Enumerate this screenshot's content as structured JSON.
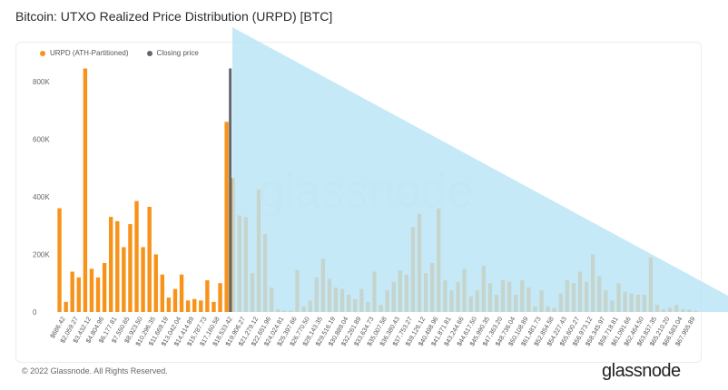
{
  "title": "Bitcoin: UTXO Realized Price Distribution (URPD) [BTC]",
  "legend": {
    "urpd_label": "URPD (ATH-Partitioned)",
    "closing_label": "Closing price"
  },
  "footer": {
    "copyright": "© 2022 Glassnode. All Rights Reserved.",
    "brand": "glassnode"
  },
  "watermark": "glassnode",
  "colors": {
    "bar": "#f7931a",
    "closing": "#5f6770",
    "overlay": "#b9e4f6"
  },
  "chart_data": {
    "type": "bar",
    "ylim": [
      0,
      900000
    ],
    "yticks": [
      0,
      200000,
      400000,
      600000,
      800000
    ],
    "yticklabels": [
      "0",
      "200K",
      "400K",
      "600K",
      "800K"
    ],
    "xticklabels": [
      "$686.42",
      "$2,059.27",
      "$3,432.12",
      "$4,804.96",
      "$6,177.81",
      "$7,550.65",
      "$8,923.50",
      "$10,296.35",
      "$11,669.19",
      "$13,042.04",
      "$14,414.89",
      "$15,787.73",
      "$17,160.58",
      "$18,533.42",
      "$19,906.27",
      "$21,279.12",
      "$22,651.96",
      "$24,024.81",
      "$25,397.66",
      "$26,770.50",
      "$28,143.35",
      "$29,516.19",
      "$30,889.04",
      "$32,261.89",
      "$33,634.73",
      "$35,007.58",
      "$36,380.43",
      "$37,753.27",
      "$39,126.12",
      "$40,498.96",
      "$41,871.81",
      "$43,244.66",
      "$44,617.50",
      "$45,990.35",
      "$47,363.20",
      "$48,736.04",
      "$50,108.89",
      "$51,481.73",
      "$52,854.58",
      "$54,227.43",
      "$55,600.27",
      "$56,973.12",
      "$58,345.97",
      "$59,718.81",
      "$61,091.66",
      "$62,464.50",
      "$63,837.35",
      "$65,210.20",
      "$66,583.04",
      "$67,955.89"
    ],
    "values": [
      360000,
      35000,
      140000,
      120000,
      845000,
      150000,
      120000,
      170000,
      330000,
      315000,
      225000,
      305000,
      385000,
      225000,
      365000,
      200000,
      130000,
      50000,
      80000,
      130000,
      40000,
      45000,
      40000,
      110000,
      35000,
      100000,
      660000,
      465000,
      335000,
      330000,
      135000,
      425000,
      270000,
      85000,
      10000,
      5000,
      5000,
      145000,
      20000,
      40000,
      120000,
      185000,
      115000,
      85000,
      80000,
      60000,
      45000,
      80000,
      35000,
      140000,
      25000,
      75000,
      105000,
      145000,
      130000,
      295000,
      340000,
      135000,
      170000,
      360000,
      110000,
      75000,
      105000,
      150000,
      55000,
      75000,
      160000,
      100000,
      60000,
      110000,
      105000,
      60000,
      110000,
      85000,
      20000,
      75000,
      20000,
      15000,
      65000,
      110000,
      100000,
      140000,
      105000,
      200000,
      125000,
      75000,
      40000,
      100000,
      70000,
      65000,
      60000,
      60000,
      190000,
      25000,
      10000,
      15000,
      25000,
      10000,
      8000,
      5000
    ],
    "closing_price_index": 27,
    "closing_price_value": 845000
  }
}
